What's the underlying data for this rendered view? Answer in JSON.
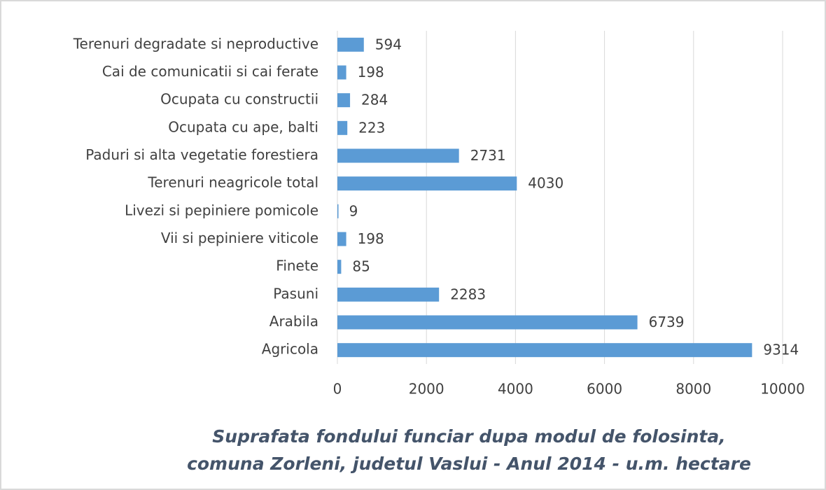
{
  "chart_data": {
    "type": "bar",
    "orientation": "horizontal",
    "title": [
      "Suprafata fondului funciar dupa modul de folosinta,",
      "comuna Zorleni, judetul Vaslui - Anul 2014 - u.m. hectare"
    ],
    "categories": [
      "Terenuri degradate si neproductive",
      "Cai de comunicatii si cai ferate",
      "Ocupata cu constructii",
      "Ocupata cu ape, balti",
      "Paduri si alta vegetatie forestiera",
      "Terenuri neagricole total",
      "Livezi si pepiniere pomicole",
      "Vii si pepiniere viticole",
      "Finete",
      "Pasuni",
      "Arabila",
      "Agricola"
    ],
    "values": [
      594,
      198,
      284,
      223,
      2731,
      4030,
      9,
      198,
      85,
      2283,
      6739,
      9314
    ],
    "color": "#5b9bd5",
    "xlim": [
      0,
      10000
    ],
    "xticks": [
      0,
      2000,
      4000,
      6000,
      8000,
      10000
    ],
    "grid": true
  }
}
